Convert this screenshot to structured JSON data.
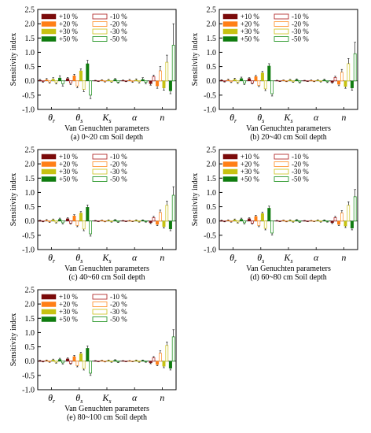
{
  "figure": {
    "colors": {
      "+10": "#7b0a0a",
      "+20": "#ff7f16",
      "+30": "#c7c212",
      "+50": "#0f7c0f",
      "-10": "#b43030",
      "-20": "#ff9a3c",
      "-30": "#d2c832",
      "-50": "#2e9a2e",
      "error": "#000000"
    }
  },
  "chart_data": [
    {
      "type": "bar",
      "title": "",
      "caption": "(a) 0~20 cm Soil depth",
      "xlabel": "Van Genuchten parameters",
      "ylabel": "Sensitivity index",
      "ylim": [
        -1.0,
        2.5
      ],
      "yticks": [
        "2.5",
        "2.0",
        "1.5",
        "1.0",
        "0.5",
        "0.0",
        "-0.5",
        "-1.0"
      ],
      "categories": [
        "θr",
        "θs",
        "Ks",
        "α",
        "n"
      ],
      "legend_placement": "top-left",
      "series": [
        {
          "name": "+10 %",
          "key": "+10",
          "fill": "solid",
          "values": [
            0.02,
            0.08,
            0.01,
            0.01,
            -0.1
          ],
          "errors": [
            0.03,
            0.04,
            0.01,
            0.02,
            0.05
          ]
        },
        {
          "name": "+20 %",
          "key": "+20",
          "fill": "solid",
          "values": [
            0.04,
            0.18,
            0.02,
            0.02,
            -0.18
          ],
          "errors": [
            0.04,
            0.05,
            0.02,
            0.03,
            0.08
          ]
        },
        {
          "name": "+30 %",
          "key": "+30",
          "fill": "solid",
          "values": [
            0.06,
            0.35,
            0.03,
            0.03,
            -0.25
          ],
          "errors": [
            0.05,
            0.07,
            0.02,
            0.04,
            0.08
          ]
        },
        {
          "name": "+50 %",
          "key": "+50",
          "fill": "solid",
          "values": [
            0.1,
            0.6,
            0.05,
            0.05,
            -0.35
          ],
          "errors": [
            0.08,
            0.12,
            0.03,
            0.06,
            0.1
          ]
        },
        {
          "name": "-10 %",
          "key": "-10",
          "fill": "hollow",
          "values": [
            -0.02,
            -0.08,
            -0.01,
            -0.01,
            0.15
          ],
          "errors": [
            0.03,
            0.05,
            0.01,
            0.02,
            0.05
          ]
        },
        {
          "name": "-20 %",
          "key": "-20",
          "fill": "hollow",
          "values": [
            -0.04,
            -0.18,
            -0.02,
            -0.02,
            0.35
          ],
          "errors": [
            0.04,
            0.06,
            0.02,
            0.03,
            0.15
          ]
        },
        {
          "name": "-30 %",
          "key": "-30",
          "fill": "hollow",
          "values": [
            -0.06,
            -0.3,
            -0.03,
            -0.03,
            0.65
          ],
          "errors": [
            0.05,
            0.08,
            0.02,
            0.04,
            0.25
          ]
        },
        {
          "name": "-50 %",
          "key": "-50",
          "fill": "hollow",
          "values": [
            -0.1,
            -0.5,
            -0.05,
            -0.05,
            1.25
          ],
          "errors": [
            0.08,
            0.12,
            0.03,
            0.05,
            0.75
          ]
        }
      ]
    },
    {
      "type": "bar",
      "title": "",
      "caption": "(b) 20~40 cm Soil depth",
      "xlabel": "Van Genuchten parameters",
      "ylabel": "Sensitivity index",
      "ylim": [
        -1.0,
        2.5
      ],
      "yticks": [
        "2.5",
        "2.0",
        "1.5",
        "1.0",
        "0.5",
        "0.0",
        "-0.5",
        "-1.0"
      ],
      "categories": [
        "θr",
        "θs",
        "Ks",
        "α",
        "n"
      ],
      "legend_placement": "top-left",
      "series": [
        {
          "name": "+10 %",
          "key": "+10",
          "fill": "solid",
          "values": [
            0.02,
            0.08,
            0.01,
            0.01,
            -0.05
          ],
          "errors": [
            0.02,
            0.03,
            0.01,
            0.01,
            0.03
          ]
        },
        {
          "name": "+20 %",
          "key": "+20",
          "fill": "solid",
          "values": [
            0.03,
            0.15,
            0.02,
            0.01,
            -0.12
          ],
          "errors": [
            0.03,
            0.04,
            0.01,
            0.02,
            0.05
          ]
        },
        {
          "name": "+30 %",
          "key": "+30",
          "fill": "solid",
          "values": [
            0.05,
            0.28,
            0.03,
            0.02,
            -0.2
          ],
          "errors": [
            0.04,
            0.05,
            0.02,
            0.02,
            0.06
          ]
        },
        {
          "name": "+50 %",
          "key": "+50",
          "fill": "solid",
          "values": [
            0.08,
            0.52,
            0.04,
            0.03,
            -0.25
          ],
          "errors": [
            0.05,
            0.08,
            0.03,
            0.03,
            0.08
          ]
        },
        {
          "name": "-10 %",
          "key": "-10",
          "fill": "hollow",
          "values": [
            -0.02,
            -0.08,
            -0.01,
            -0.01,
            0.12
          ],
          "errors": [
            0.02,
            0.03,
            0.01,
            0.01,
            0.04
          ]
        },
        {
          "name": "-20 %",
          "key": "-20",
          "fill": "hollow",
          "values": [
            -0.03,
            -0.16,
            -0.02,
            -0.01,
            0.3
          ],
          "errors": [
            0.03,
            0.04,
            0.01,
            0.02,
            0.1
          ]
        },
        {
          "name": "-30 %",
          "key": "-30",
          "fill": "hollow",
          "values": [
            -0.05,
            -0.28,
            -0.03,
            -0.02,
            0.6
          ],
          "errors": [
            0.04,
            0.06,
            0.02,
            0.02,
            0.18
          ]
        },
        {
          "name": "-50 %",
          "key": "-50",
          "fill": "hollow",
          "values": [
            -0.08,
            -0.45,
            -0.04,
            -0.03,
            0.95
          ],
          "errors": [
            0.05,
            0.08,
            0.03,
            0.03,
            0.4
          ]
        }
      ]
    },
    {
      "type": "bar",
      "title": "",
      "caption": "(c) 40~60 cm Soil depth",
      "xlabel": "Van Genuchten parameters",
      "ylabel": "Sensitivity index",
      "ylim": [
        -1.0,
        2.5
      ],
      "yticks": [
        "2.5",
        "2.0",
        "1.5",
        "1.0",
        "0.5",
        "0.0",
        "-0.5",
        "-1.0"
      ],
      "categories": [
        "θr",
        "θs",
        "Ks",
        "α",
        "n"
      ],
      "legend_placement": "top-left",
      "series": [
        {
          "name": "+10 %",
          "key": "+10",
          "fill": "solid",
          "values": [
            0.01,
            0.08,
            0.01,
            0.01,
            -0.06
          ],
          "errors": [
            0.02,
            0.03,
            0.01,
            0.01,
            0.03
          ]
        },
        {
          "name": "+20 %",
          "key": "+20",
          "fill": "solid",
          "values": [
            0.02,
            0.18,
            0.02,
            0.01,
            -0.12
          ],
          "errors": [
            0.03,
            0.04,
            0.01,
            0.01,
            0.04
          ]
        },
        {
          "name": "+30 %",
          "key": "+30",
          "fill": "solid",
          "values": [
            0.04,
            0.28,
            0.02,
            0.02,
            -0.2
          ],
          "errors": [
            0.03,
            0.05,
            0.02,
            0.02,
            0.05
          ]
        },
        {
          "name": "+50 %",
          "key": "+50",
          "fill": "solid",
          "values": [
            0.06,
            0.48,
            0.03,
            0.02,
            -0.28
          ],
          "errors": [
            0.04,
            0.08,
            0.02,
            0.02,
            0.06
          ]
        },
        {
          "name": "-10 %",
          "key": "-10",
          "fill": "hollow",
          "values": [
            -0.01,
            -0.08,
            -0.01,
            -0.01,
            0.12
          ],
          "errors": [
            0.02,
            0.03,
            0.01,
            0.01,
            0.04
          ]
        },
        {
          "name": "-20 %",
          "key": "-20",
          "fill": "hollow",
          "values": [
            -0.02,
            -0.16,
            -0.02,
            -0.01,
            0.3
          ],
          "errors": [
            0.03,
            0.04,
            0.01,
            0.01,
            0.08
          ]
        },
        {
          "name": "-30 %",
          "key": "-30",
          "fill": "hollow",
          "values": [
            -0.04,
            -0.28,
            -0.02,
            -0.02,
            0.55
          ],
          "errors": [
            0.03,
            0.06,
            0.02,
            0.02,
            0.15
          ]
        },
        {
          "name": "-50 %",
          "key": "-50",
          "fill": "hollow",
          "values": [
            -0.06,
            -0.45,
            -0.03,
            -0.02,
            0.9
          ],
          "errors": [
            0.04,
            0.08,
            0.02,
            0.02,
            0.3
          ]
        }
      ]
    },
    {
      "type": "bar",
      "title": "",
      "caption": "(d) 60~80 cm Soil depth",
      "xlabel": "Van Genuchten parameters",
      "ylabel": "Sensitivity index",
      "ylim": [
        -1.0,
        2.5
      ],
      "yticks": [
        "2.5",
        "2.0",
        "1.5",
        "1.0",
        "0.5",
        "0.0",
        "-0.5",
        "-1.0"
      ],
      "categories": [
        "θr",
        "θs",
        "Ks",
        "α",
        "n"
      ],
      "legend_placement": "top-left",
      "series": [
        {
          "name": "+10 %",
          "key": "+10",
          "fill": "solid",
          "values": [
            0.01,
            0.08,
            0.01,
            0.01,
            -0.06
          ],
          "errors": [
            0.02,
            0.03,
            0.01,
            0.01,
            0.03
          ]
        },
        {
          "name": "+20 %",
          "key": "+20",
          "fill": "solid",
          "values": [
            0.02,
            0.16,
            0.02,
            0.01,
            -0.12
          ],
          "errors": [
            0.02,
            0.04,
            0.01,
            0.01,
            0.04
          ]
        },
        {
          "name": "+30 %",
          "key": "+30",
          "fill": "solid",
          "values": [
            0.04,
            0.26,
            0.02,
            0.02,
            -0.18
          ],
          "errors": [
            0.03,
            0.05,
            0.02,
            0.02,
            0.05
          ]
        },
        {
          "name": "+50 %",
          "key": "+50",
          "fill": "solid",
          "values": [
            0.06,
            0.45,
            0.03,
            0.02,
            -0.25
          ],
          "errors": [
            0.04,
            0.07,
            0.02,
            0.02,
            0.06
          ]
        },
        {
          "name": "-10 %",
          "key": "-10",
          "fill": "hollow",
          "values": [
            -0.01,
            -0.08,
            -0.01,
            -0.01,
            0.12
          ],
          "errors": [
            0.02,
            0.03,
            0.01,
            0.01,
            0.04
          ]
        },
        {
          "name": "-20 %",
          "key": "-20",
          "fill": "hollow",
          "values": [
            -0.02,
            -0.16,
            -0.02,
            -0.01,
            0.28
          ],
          "errors": [
            0.02,
            0.04,
            0.01,
            0.01,
            0.08
          ]
        },
        {
          "name": "-30 %",
          "key": "-30",
          "fill": "hollow",
          "values": [
            -0.04,
            -0.26,
            -0.02,
            -0.02,
            0.55
          ],
          "errors": [
            0.03,
            0.05,
            0.02,
            0.02,
            0.12
          ]
        },
        {
          "name": "-50 %",
          "key": "-50",
          "fill": "hollow",
          "values": [
            -0.06,
            -0.42,
            -0.03,
            -0.02,
            0.85
          ],
          "errors": [
            0.04,
            0.07,
            0.02,
            0.02,
            0.25
          ]
        }
      ]
    },
    {
      "type": "bar",
      "title": "",
      "caption": "(e) 80~100 cm Soil depth",
      "xlabel": "Van Genuchten parameters",
      "ylabel": "Sensitivity index",
      "ylim": [
        -1.0,
        2.5
      ],
      "yticks": [
        "2.5",
        "2.0",
        "1.5",
        "1.0",
        "0.5",
        "0.0",
        "-0.5",
        "-1.0"
      ],
      "categories": [
        "θr",
        "θs",
        "Ks",
        "α",
        "n"
      ],
      "legend_placement": "top-left",
      "series": [
        {
          "name": "+10 %",
          "key": "+10",
          "fill": "solid",
          "values": [
            0.01,
            0.08,
            0.01,
            0.01,
            -0.06
          ],
          "errors": [
            0.02,
            0.03,
            0.01,
            0.01,
            0.03
          ]
        },
        {
          "name": "+20 %",
          "key": "+20",
          "fill": "solid",
          "values": [
            0.02,
            0.16,
            0.02,
            0.01,
            -0.12
          ],
          "errors": [
            0.02,
            0.04,
            0.01,
            0.01,
            0.04
          ]
        },
        {
          "name": "+30 %",
          "key": "+30",
          "fill": "solid",
          "values": [
            0.04,
            0.26,
            0.02,
            0.02,
            -0.18
          ],
          "errors": [
            0.03,
            0.05,
            0.02,
            0.02,
            0.05
          ]
        },
        {
          "name": "+50 %",
          "key": "+50",
          "fill": "solid",
          "values": [
            0.06,
            0.45,
            0.03,
            0.02,
            -0.25
          ],
          "errors": [
            0.04,
            0.08,
            0.02,
            0.02,
            0.06
          ]
        },
        {
          "name": "-10 %",
          "key": "-10",
          "fill": "hollow",
          "values": [
            -0.01,
            -0.08,
            -0.01,
            -0.01,
            0.12
          ],
          "errors": [
            0.02,
            0.03,
            0.01,
            0.01,
            0.04
          ]
        },
        {
          "name": "-20 %",
          "key": "-20",
          "fill": "hollow",
          "values": [
            -0.02,
            -0.16,
            -0.02,
            -0.01,
            0.28
          ],
          "errors": [
            0.02,
            0.04,
            0.01,
            0.01,
            0.08
          ]
        },
        {
          "name": "-30 %",
          "key": "-30",
          "fill": "hollow",
          "values": [
            -0.04,
            -0.26,
            -0.02,
            -0.02,
            0.55
          ],
          "errors": [
            0.03,
            0.05,
            0.02,
            0.02,
            0.12
          ]
        },
        {
          "name": "-50 %",
          "key": "-50",
          "fill": "hollow",
          "values": [
            -0.06,
            -0.42,
            -0.03,
            -0.02,
            0.85
          ],
          "errors": [
            0.04,
            0.08,
            0.02,
            0.02,
            0.25
          ]
        }
      ]
    }
  ]
}
